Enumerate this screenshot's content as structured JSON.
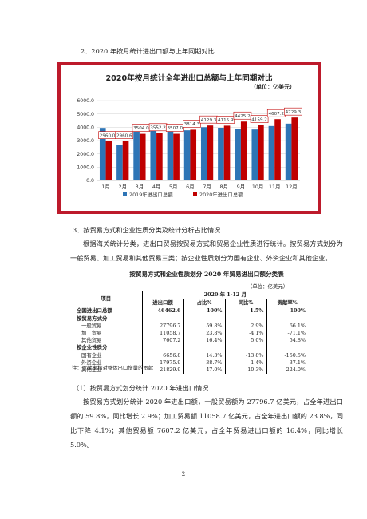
{
  "section2_title": "2．2020 年按月统计进出口额与上年同期对比",
  "chart_data": {
    "type": "bar",
    "title": "2020年按月统计全年进出口总额与上年同期对比",
    "unit_label": "（单位：亿美元）",
    "categories": [
      "1月",
      "2月",
      "3月",
      "4月",
      "5月",
      "6月",
      "7月",
      "8月",
      "9月",
      "10月",
      "11月",
      "12月"
    ],
    "ylim": [
      0,
      6000
    ],
    "yticks": [
      "0.0",
      "1000.0",
      "2000.0",
      "3000.0",
      "4000.0",
      "5000.0",
      "6000.0"
    ],
    "series": [
      {
        "name": "2019年进出口总额",
        "color": "#2e75b6",
        "values": [
          3950,
          2660,
          3690,
          3720,
          3870,
          3770,
          4000,
          3960,
          3900,
          3830,
          4090,
          4270
        ]
      },
      {
        "name": "2020年进出口总额",
        "color": "#c00000",
        "values": [
          2960.0,
          2960.6,
          3504.0,
          3552.2,
          3507.0,
          3814.3,
          4129.3,
          4115.9,
          4425.2,
          4159.2,
          4607.2,
          4729.3
        ],
        "labels": [
          "2960.0",
          "2960.6",
          "3504.0",
          "3552.2",
          "3507.0",
          "3814.3",
          "4129.3",
          "4115.9",
          "4425.2",
          "4159.2",
          "4607.2",
          "4729.3"
        ]
      }
    ],
    "grid": true,
    "legend_position": "bottom"
  },
  "section3_title": "3．按贸易方式和企业性质分类及统计分析占比情况",
  "para1": "根据海关统计分类，进出口贸易按贸易方式和贸易企业性质进行统计。按贸易方式划分为一般贸易、加工贸易和其他贸易三类；按企业性质划分为国有企业、外资企业和其他企业。",
  "table": {
    "caption": "按贸易方式和企业性质划分 2020 年贸易进出口额分类表",
    "unit": "（单位：亿美元）",
    "header_item": "项目",
    "header_period": "2020 年 1-12 月",
    "columns": [
      "进出口额",
      "占比%",
      "同比%",
      "贡献率%"
    ],
    "rows": [
      {
        "label": "全国进出口总额",
        "style": "bold",
        "values": [
          "46462.6",
          "100%",
          "1.5%",
          "100%"
        ]
      },
      {
        "label": "按贸易方式分",
        "style": "bold-indent",
        "values": [
          "",
          "",
          "",
          ""
        ]
      },
      {
        "label": "一般贸易",
        "style": "indent",
        "values": [
          "27796.7",
          "59.8%",
          "2.9%",
          "66.1%"
        ]
      },
      {
        "label": "加工贸易",
        "style": "indent",
        "values": [
          "11058.7",
          "23.8%",
          "-4.1%",
          "-71.1%"
        ]
      },
      {
        "label": "其他贸易",
        "style": "indent",
        "values": [
          "7607.2",
          "16.4%",
          "5.0%",
          "54.8%"
        ]
      },
      {
        "label": "按企业性质分",
        "style": "bold-indent",
        "values": [
          "",
          "",
          "",
          ""
        ]
      },
      {
        "label": "国有企业",
        "style": "indent",
        "values": [
          "6656.8",
          "14.3%",
          "-13.8%",
          "-150.5%"
        ]
      },
      {
        "label": "外资企业",
        "style": "indent",
        "values": [
          "17975.9",
          "38.7%",
          "-1.4%",
          "-37.1%"
        ]
      },
      {
        "label": "其他企业",
        "style": "indent",
        "values": [
          "21829.9",
          "47.0%",
          "10.3%",
          "224.0%"
        ]
      }
    ],
    "note": "注：贡献率指对整体出口增量的贡献"
  },
  "sub1_title": "（1）按贸易方式划分统计 2020 年进出口情况",
  "para2": "按贸易方式划分统计 2020 年进出口额，一般贸易额为 27796.7 亿美元，占全年进出口额的 59.8%，同比增长 2.9%；加工贸易额 11058.7 亿美元，占全年进出口额的 23.8%，同比下降 4.1%；其他贸易额 7607.2 亿美元，占全年贸易进出口额的 16.4%，同比增长 5.0%。",
  "page_number": "2"
}
